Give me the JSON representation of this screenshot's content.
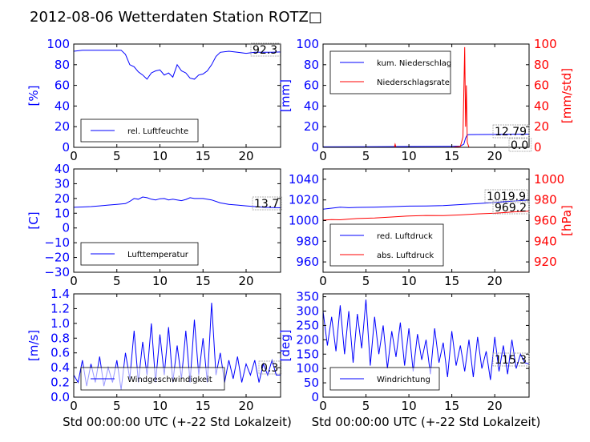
{
  "figure": {
    "title": "2012-08-06 Wetterdaten Station ROTZ□"
  },
  "colors": {
    "blue": "#0000ff",
    "red": "#ff0000",
    "axis": "#000000",
    "background": "#ffffff"
  },
  "chart_data": [
    {
      "id": "humidity",
      "type": "line",
      "xlim": [
        0,
        24
      ],
      "xticks": [
        0,
        5,
        10,
        15,
        20
      ],
      "ylim": [
        0,
        100
      ],
      "yticks": [
        0,
        20,
        40,
        60,
        80,
        100
      ],
      "ylabel": "[%]",
      "ylabel_color": "#0000ff",
      "series": [
        {
          "name": "rel. Luftfeuchte",
          "color": "#0000ff",
          "axis": "left",
          "x": [
            0,
            1,
            2,
            3,
            4,
            5,
            5.5,
            6,
            6.5,
            7,
            7.5,
            8,
            8.5,
            9,
            9.5,
            10,
            10.5,
            11,
            11.5,
            12,
            12.5,
            13,
            13.5,
            14,
            14.5,
            15,
            15.5,
            16,
            16.5,
            17,
            18,
            19,
            20,
            21,
            22,
            23,
            24
          ],
          "y": [
            93,
            94,
            94,
            94,
            94,
            94,
            94,
            90,
            80,
            78,
            73,
            70,
            66,
            72,
            74,
            75,
            70,
            72,
            68,
            80,
            74,
            72,
            67,
            66,
            70,
            71,
            74,
            80,
            88,
            92,
            93,
            92,
            91,
            92,
            92,
            92,
            92.3
          ]
        }
      ],
      "annotations": [
        {
          "text": "92.3"
        }
      ],
      "legend_placement": "lower-left"
    },
    {
      "id": "precip",
      "type": "line",
      "xlim": [
        0,
        24
      ],
      "xticks": [
        0,
        5,
        10,
        15,
        20
      ],
      "ylim": [
        0,
        100
      ],
      "yticks": [
        0,
        20,
        40,
        60,
        80,
        100
      ],
      "ylabel": "[mm]",
      "ylabel_color": "#0000ff",
      "ylim2": [
        0,
        100
      ],
      "yticks2": [
        0,
        20,
        40,
        60,
        80,
        100
      ],
      "ylabel2": "[mm/std]",
      "ylabel2_color": "#ff0000",
      "series": [
        {
          "name": "kum. Niederschlag",
          "color": "#0000ff",
          "axis": "left",
          "x": [
            0,
            5,
            10,
            15,
            16,
            16.4,
            16.6,
            16.8,
            17,
            18,
            20,
            22,
            24
          ],
          "y": [
            0.5,
            0.6,
            0.8,
            1.0,
            1.2,
            3,
            9,
            12.1,
            12.3,
            12.4,
            12.5,
            12.7,
            12.79
          ]
        },
        {
          "name": "Niederschlagsrate",
          "color": "#ff0000",
          "axis": "right",
          "x": [
            0,
            8.3,
            8.4,
            8.5,
            10,
            15,
            16,
            16.3,
            16.5,
            16.6,
            16.7,
            16.8,
            17,
            18,
            20,
            24
          ],
          "y": [
            0,
            0,
            3,
            0,
            0,
            0,
            1,
            10,
            97,
            20,
            60,
            5,
            0,
            0,
            0,
            0
          ]
        }
      ],
      "annotations": [
        {
          "text": "12.79"
        },
        {
          "text": "0.0"
        }
      ],
      "legend_placement": "upper-left"
    },
    {
      "id": "temperature",
      "type": "line",
      "xlim": [
        0,
        24
      ],
      "xticks": [
        0,
        5,
        10,
        15,
        20
      ],
      "ylim": [
        -30,
        40
      ],
      "yticks": [
        -30,
        -20,
        -10,
        0,
        10,
        20,
        30,
        40
      ],
      "ylabel": "[C]",
      "ylabel_color": "#0000ff",
      "series": [
        {
          "name": "Lufttemperatur",
          "color": "#0000ff",
          "axis": "left",
          "x": [
            0,
            1,
            2,
            3,
            4,
            5,
            6,
            6.5,
            7,
            7.5,
            8,
            8.5,
            9,
            9.5,
            10,
            10.5,
            11,
            11.5,
            12,
            12.5,
            13,
            13.5,
            14,
            15,
            16,
            17,
            18,
            19,
            20,
            21,
            22,
            23,
            24
          ],
          "y": [
            14,
            14.2,
            14.5,
            15,
            15.5,
            16,
            16.5,
            18,
            20,
            19.5,
            21,
            20.5,
            19.5,
            19,
            19.8,
            20,
            19,
            19.5,
            19,
            18.5,
            19.3,
            20.5,
            20,
            20,
            19,
            17,
            16,
            15.5,
            15,
            14.5,
            14,
            13.8,
            13.7
          ]
        }
      ],
      "annotations": [
        {
          "text": "13.7"
        }
      ],
      "legend_placement": "lower-left"
    },
    {
      "id": "pressure",
      "type": "line",
      "xlim": [
        0,
        24
      ],
      "xticks": [
        0,
        5,
        10,
        15,
        20
      ],
      "ylim": [
        950,
        1050
      ],
      "yticks": [
        960,
        980,
        1000,
        1020,
        1040
      ],
      "ylabel": "",
      "ylabel_color": "#0000ff",
      "ylim2": [
        910,
        1010
      ],
      "yticks2": [
        920,
        940,
        960,
        980,
        1000
      ],
      "ylabel2": "[hPa]",
      "ylabel2_color": "#ff0000",
      "series": [
        {
          "name": "red. Luftdruck",
          "color": "#0000ff",
          "axis": "left",
          "x": [
            0,
            1,
            2,
            3,
            4,
            6,
            8,
            10,
            12,
            14,
            16,
            18,
            20,
            22,
            24
          ],
          "y": [
            1011,
            1012,
            1013,
            1012.5,
            1012.8,
            1013,
            1013.5,
            1014,
            1014.2,
            1014.5,
            1015.5,
            1016.5,
            1017.5,
            1018.8,
            1019.9
          ]
        },
        {
          "name": "abs. Luftdruck",
          "color": "#ff0000",
          "axis": "right",
          "x": [
            0,
            1,
            2,
            3,
            4,
            6,
            8,
            10,
            12,
            14,
            16,
            18,
            20,
            22,
            24
          ],
          "y": [
            960.5,
            961,
            960.8,
            961.5,
            962,
            962.5,
            963.5,
            964.5,
            965,
            964.8,
            965.5,
            966.5,
            967.2,
            968.3,
            969.2
          ]
        }
      ],
      "annotations": [
        {
          "text": "1019.9"
        },
        {
          "text": "969.2"
        }
      ],
      "legend_placement": "lower-left"
    },
    {
      "id": "windspeed",
      "type": "line",
      "xlim": [
        0,
        24
      ],
      "xticks": [
        0,
        5,
        10,
        15,
        20
      ],
      "ylim": [
        0,
        1.4
      ],
      "yticks": [
        0.0,
        0.2,
        0.4,
        0.6,
        0.8,
        1.0,
        1.2,
        1.4
      ],
      "ylabel": "[m/s]",
      "ylabel_color": "#0000ff",
      "xlabel": "Std 00:00:00 UTC (+-22 Std Lokalzeit)",
      "series": [
        {
          "name": "Windgeschwindigkeit",
          "color": "#0000ff",
          "axis": "left",
          "x": [
            0,
            0.5,
            1,
            1.5,
            2,
            2.5,
            3,
            3.5,
            4,
            4.5,
            5,
            5.5,
            6,
            6.5,
            7,
            7.5,
            8,
            8.5,
            9,
            9.5,
            10,
            10.5,
            11,
            11.5,
            12,
            12.5,
            13,
            13.5,
            14,
            14.5,
            15,
            15.5,
            16,
            16.5,
            17,
            17.5,
            18,
            18.5,
            19,
            19.5,
            20,
            20.5,
            21,
            21.5,
            22,
            22.5,
            23,
            23.5,
            24
          ],
          "y": [
            0.3,
            0.2,
            0.5,
            0.15,
            0.45,
            0.2,
            0.55,
            0.15,
            0.4,
            0.2,
            0.5,
            0.1,
            0.6,
            0.25,
            0.9,
            0.2,
            0.75,
            0.3,
            1.0,
            0.2,
            0.85,
            0.3,
            0.95,
            0.2,
            0.7,
            0.25,
            0.9,
            0.2,
            1.05,
            0.3,
            0.8,
            0.2,
            1.28,
            0.3,
            0.6,
            0.2,
            0.5,
            0.25,
            0.55,
            0.2,
            0.45,
            0.3,
            0.5,
            0.2,
            0.45,
            0.3,
            0.5,
            0.3,
            0.3
          ]
        }
      ],
      "annotations": [
        {
          "text": "0.3"
        }
      ],
      "legend_placement": "lower-left"
    },
    {
      "id": "winddir",
      "type": "line",
      "xlim": [
        0,
        24
      ],
      "xticks": [
        0,
        5,
        10,
        15,
        20
      ],
      "ylim": [
        0,
        360
      ],
      "yticks": [
        0,
        50,
        100,
        150,
        200,
        250,
        300,
        350
      ],
      "ylabel": "[deg]",
      "ylabel_color": "#0000ff",
      "xlabel": "Std 00:00:00 UTC (+-22 Std Lokalzeit)",
      "series": [
        {
          "name": "Windrichtung",
          "color": "#0000ff",
          "axis": "left",
          "x": [
            0,
            0.5,
            1,
            1.5,
            2,
            2.5,
            3,
            3.5,
            4,
            4.5,
            5,
            5.5,
            6,
            6.5,
            7,
            7.5,
            8,
            8.5,
            9,
            9.5,
            10,
            10.5,
            11,
            11.5,
            12,
            12.5,
            13,
            13.5,
            14,
            14.5,
            15,
            15.5,
            16,
            16.5,
            17,
            17.5,
            18,
            18.5,
            19,
            19.5,
            20,
            20.5,
            21,
            21.5,
            22,
            22.5,
            23,
            23.5,
            24
          ],
          "y": [
            300,
            180,
            280,
            160,
            320,
            150,
            300,
            120,
            290,
            170,
            340,
            110,
            280,
            150,
            250,
            100,
            230,
            140,
            260,
            110,
            240,
            90,
            220,
            130,
            200,
            80,
            240,
            120,
            190,
            70,
            230,
            110,
            180,
            90,
            200,
            70,
            210,
            100,
            160,
            60,
            210,
            90,
            180,
            80,
            200,
            100,
            150,
            120,
            115.3
          ]
        }
      ],
      "annotations": [
        {
          "text": "115.3"
        }
      ],
      "legend_placement": "lower-left"
    }
  ]
}
